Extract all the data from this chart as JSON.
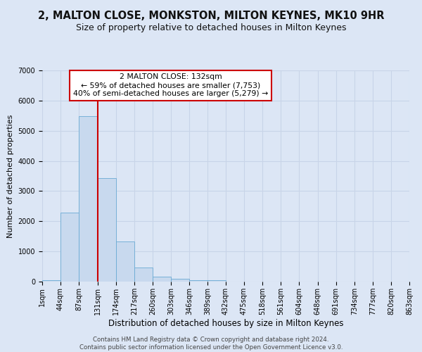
{
  "title": "2, MALTON CLOSE, MONKSTON, MILTON KEYNES, MK10 9HR",
  "subtitle": "Size of property relative to detached houses in Milton Keynes",
  "xlabel": "Distribution of detached houses by size in Milton Keynes",
  "ylabel": "Number of detached properties",
  "bar_color": "#c8d9ee",
  "bar_edge_color": "#6aaad4",
  "bar_values": [
    50,
    2280,
    5480,
    3440,
    1320,
    460,
    175,
    100,
    50,
    50,
    0,
    0,
    0,
    0,
    0,
    0,
    0,
    0,
    0,
    0
  ],
  "bin_labels": [
    "1sqm",
    "44sqm",
    "87sqm",
    "131sqm",
    "174sqm",
    "217sqm",
    "260sqm",
    "303sqm",
    "346sqm",
    "389sqm",
    "432sqm",
    "475sqm",
    "518sqm",
    "561sqm",
    "604sqm",
    "648sqm",
    "691sqm",
    "734sqm",
    "777sqm",
    "820sqm",
    "863sqm"
  ],
  "bin_edges": [
    1,
    44,
    87,
    131,
    174,
    217,
    260,
    303,
    346,
    389,
    432,
    475,
    518,
    561,
    604,
    648,
    691,
    734,
    777,
    820,
    863
  ],
  "vline_x": 132,
  "vline_color": "#cc0000",
  "annotation_text": "2 MALTON CLOSE: 132sqm\n← 59% of detached houses are smaller (7,753)\n40% of semi-detached houses are larger (5,279) →",
  "annotation_box_color": "#ffffff",
  "annotation_box_edge_color": "#cc0000",
  "ylim": [
    0,
    7000
  ],
  "yticks": [
    0,
    1000,
    2000,
    3000,
    4000,
    5000,
    6000,
    7000
  ],
  "grid_color": "#c8d4e8",
  "bg_color": "#dce6f5",
  "footer_line1": "Contains HM Land Registry data © Crown copyright and database right 2024.",
  "footer_line2": "Contains public sector information licensed under the Open Government Licence v3.0.",
  "title_fontsize": 10.5,
  "subtitle_fontsize": 9,
  "xlabel_fontsize": 8.5,
  "ylabel_fontsize": 8,
  "tick_fontsize": 7,
  "footer_fontsize": 6.2
}
